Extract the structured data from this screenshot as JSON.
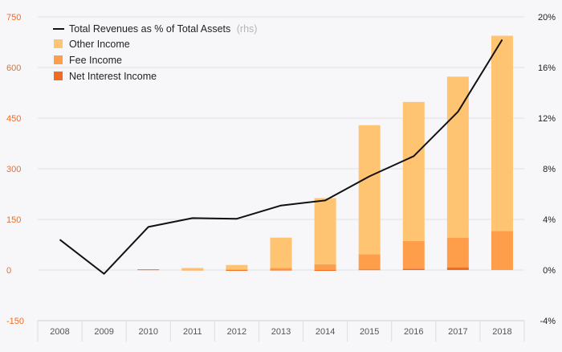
{
  "chart_data": {
    "type": "bar",
    "stacked": true,
    "categories": [
      "2008",
      "2009",
      "2010",
      "2011",
      "2012",
      "2013",
      "2014",
      "2015",
      "2016",
      "2017",
      "2018"
    ],
    "series": [
      {
        "name": "Net Interest Income",
        "axis": "left",
        "color": "#f26b21",
        "values": [
          0,
          0,
          2,
          0,
          -1,
          1,
          -2,
          2,
          4,
          8,
          0
        ]
      },
      {
        "name": "Fee Income",
        "axis": "left",
        "color": "#ff9e4a",
        "values": [
          0,
          0,
          0,
          1,
          2,
          5,
          17,
          45,
          82,
          88,
          116
        ]
      },
      {
        "name": "Other Income",
        "axis": "left",
        "color": "#ffc472",
        "values": [
          0,
          0,
          0,
          5,
          13,
          90,
          196,
          382,
          412,
          477,
          578
        ]
      }
    ],
    "line_series": {
      "name": "Total Revenues as % of Total Assets",
      "name_suffix": "(rhs)",
      "axis": "right",
      "color": "#111111",
      "values": [
        2.4,
        -0.3,
        3.4,
        4.1,
        4.05,
        5.1,
        5.5,
        7.4,
        9.0,
        12.5,
        18.2
      ]
    },
    "ylim_left": [
      -150,
      750
    ],
    "yticks_left": [
      -150,
      0,
      150,
      300,
      450,
      600,
      750
    ],
    "ylim_right": [
      -4,
      20
    ],
    "yticks_right": [
      "-4%",
      "0%",
      "4%",
      "8%",
      "12%",
      "16%",
      "20%"
    ],
    "yticks_right_values": [
      -4,
      0,
      4,
      8,
      12,
      16,
      20
    ],
    "grid": "horizontal",
    "legend_placement": "top-left",
    "colors": {
      "left_axis_ticks": "#f26b21",
      "right_axis_ticks": "#222222",
      "gridline": "#e2e2e2",
      "background": "#f7f7f9"
    }
  }
}
